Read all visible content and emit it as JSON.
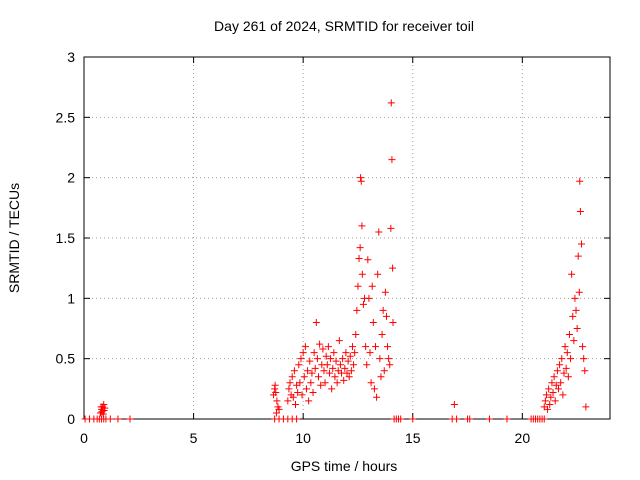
{
  "chart_data": {
    "type": "scatter",
    "title": "Day 261 of 2024, SRMTID for receiver toil",
    "xlabel": "GPS time / hours",
    "ylabel": "SRMTID / TECUs",
    "xlim": [
      0,
      24
    ],
    "ylim": [
      0,
      3
    ],
    "x_ticks": [
      0,
      5,
      10,
      15,
      20
    ],
    "x_tick_labels": [
      "0",
      "5",
      "10",
      "15",
      "20"
    ],
    "y_ticks": [
      0,
      0.5,
      1,
      1.5,
      2,
      2.5,
      3
    ],
    "y_tick_labels": [
      "0",
      "0.5",
      "1",
      "1.5",
      "2",
      "2.5",
      "3"
    ],
    "grid": true,
    "marker": "+",
    "colors": {
      "series": "#ff0000",
      "grid": "#a0a0a0",
      "axes": "#000000"
    },
    "series": [
      {
        "name": "SRMTID",
        "points": [
          [
            0.05,
            0
          ],
          [
            0.25,
            0
          ],
          [
            0.45,
            0
          ],
          [
            0.6,
            0
          ],
          [
            0.7,
            0
          ],
          [
            0.8,
            0
          ],
          [
            0.9,
            0
          ],
          [
            1.0,
            0
          ],
          [
            1.2,
            0
          ],
          [
            1.55,
            0
          ],
          [
            2.1,
            0
          ],
          [
            0.75,
            0.05
          ],
          [
            0.8,
            0.08
          ],
          [
            0.85,
            0.1
          ],
          [
            0.9,
            0.12
          ],
          [
            0.95,
            0.09
          ],
          [
            0.82,
            0.06
          ],
          [
            0.88,
            0.04
          ],
          [
            0.78,
            0.1
          ],
          [
            0.92,
            0.07
          ],
          [
            8.7,
            0
          ],
          [
            8.9,
            0
          ],
          [
            9.1,
            0
          ],
          [
            9.3,
            0
          ],
          [
            9.5,
            0
          ],
          [
            9.7,
            0
          ],
          [
            8.65,
            0.2
          ],
          [
            8.7,
            0.25
          ],
          [
            8.75,
            0.22
          ],
          [
            8.8,
            0.15
          ],
          [
            8.85,
            0.1
          ],
          [
            8.9,
            0.08
          ],
          [
            8.72,
            0.28
          ],
          [
            8.78,
            0.05
          ],
          [
            9.3,
            0.15
          ],
          [
            9.35,
            0.25
          ],
          [
            9.4,
            0.3
          ],
          [
            9.45,
            0.2
          ],
          [
            9.5,
            0.35
          ],
          [
            9.55,
            0.18
          ],
          [
            9.6,
            0.4
          ],
          [
            9.65,
            0.12
          ],
          [
            9.7,
            0.28
          ],
          [
            9.75,
            0.22
          ],
          [
            9.8,
            0.45
          ],
          [
            9.85,
            0.3
          ],
          [
            9.9,
            0.5
          ],
          [
            9.95,
            0.2
          ],
          [
            10.0,
            0.55
          ],
          [
            10.05,
            0.35
          ],
          [
            10.1,
            0.6
          ],
          [
            10.15,
            0.25
          ],
          [
            10.2,
            0.4
          ],
          [
            10.25,
            0.15
          ],
          [
            10.3,
            0.48
          ],
          [
            10.35,
            0.3
          ],
          [
            10.4,
            0.38
          ],
          [
            10.45,
            0.22
          ],
          [
            10.5,
            0.55
          ],
          [
            10.55,
            0.42
          ],
          [
            10.6,
            0.8
          ],
          [
            10.65,
            0.5
          ],
          [
            10.7,
            0.35
          ],
          [
            10.75,
            0.62
          ],
          [
            10.8,
            0.28
          ],
          [
            10.85,
            0.45
          ],
          [
            10.9,
            0.58
          ],
          [
            10.95,
            0.4
          ],
          [
            11.0,
            0.3
          ],
          [
            11.05,
            0.52
          ],
          [
            11.1,
            0.45
          ],
          [
            11.15,
            0.6
          ],
          [
            11.2,
            0.38
          ],
          [
            11.25,
            0.5
          ],
          [
            11.3,
            0.25
          ],
          [
            11.35,
            0.42
          ],
          [
            11.4,
            0.55
          ],
          [
            11.45,
            0.35
          ],
          [
            11.5,
            0.48
          ],
          [
            11.55,
            0.3
          ],
          [
            11.6,
            0.4
          ],
          [
            11.65,
            0.65
          ],
          [
            11.7,
            0.45
          ],
          [
            11.75,
            0.38
          ],
          [
            11.8,
            0.5
          ],
          [
            11.85,
            0.32
          ],
          [
            11.9,
            0.42
          ],
          [
            11.95,
            0.55
          ],
          [
            12.0,
            0.38
          ],
          [
            12.05,
            0.48
          ],
          [
            12.1,
            0.35
          ],
          [
            12.15,
            0.52
          ],
          [
            12.2,
            0.4
          ],
          [
            12.25,
            0.6
          ],
          [
            12.3,
            0.45
          ],
          [
            12.35,
            0.55
          ],
          [
            12.4,
            0.7
          ],
          [
            12.45,
            0.9
          ],
          [
            12.5,
            1.1
          ],
          [
            12.55,
            1.33
          ],
          [
            12.6,
            1.42
          ],
          [
            12.62,
            2.0
          ],
          [
            12.65,
            1.97
          ],
          [
            12.68,
            1.6
          ],
          [
            12.7,
            1.2
          ],
          [
            12.75,
            0.95
          ],
          [
            12.8,
            1.0
          ],
          [
            12.85,
            0.6
          ],
          [
            12.9,
            0.45
          ],
          [
            12.95,
            1.32
          ],
          [
            13.0,
            1.0
          ],
          [
            13.05,
            0.55
          ],
          [
            13.1,
            0.3
          ],
          [
            13.15,
            1.1
          ],
          [
            13.2,
            0.8
          ],
          [
            13.25,
            0.25
          ],
          [
            13.3,
            0.6
          ],
          [
            13.35,
            0.18
          ],
          [
            13.4,
            1.2
          ],
          [
            13.45,
            1.55
          ],
          [
            13.5,
            0.5
          ],
          [
            13.55,
            0.35
          ],
          [
            13.6,
            0.7
          ],
          [
            13.65,
            0.9
          ],
          [
            13.7,
            0.4
          ],
          [
            13.75,
            1.05
          ],
          [
            13.8,
            0.85
          ],
          [
            13.85,
            0.6
          ],
          [
            13.9,
            0.5
          ],
          [
            13.95,
            0.45
          ],
          [
            14.0,
            1.58
          ],
          [
            14.02,
            2.62
          ],
          [
            14.05,
            2.15
          ],
          [
            14.08,
            1.25
          ],
          [
            14.1,
            0.8
          ],
          [
            14.15,
            0
          ],
          [
            14.25,
            0
          ],
          [
            14.35,
            0
          ],
          [
            14.45,
            0
          ],
          [
            15.0,
            0
          ],
          [
            16.8,
            0
          ],
          [
            16.9,
            0.12
          ],
          [
            17.0,
            0
          ],
          [
            17.5,
            0
          ],
          [
            17.6,
            0
          ],
          [
            18.5,
            0
          ],
          [
            19.3,
            0
          ],
          [
            20.4,
            0
          ],
          [
            20.5,
            0
          ],
          [
            20.6,
            0
          ],
          [
            20.7,
            0
          ],
          [
            20.8,
            0
          ],
          [
            20.9,
            0
          ],
          [
            21.0,
            0
          ],
          [
            21.0,
            0.1
          ],
          [
            21.05,
            0.15
          ],
          [
            21.1,
            0.2
          ],
          [
            21.15,
            0.08
          ],
          [
            21.2,
            0.25
          ],
          [
            21.25,
            0.12
          ],
          [
            21.3,
            0.18
          ],
          [
            21.35,
            0.3
          ],
          [
            21.4,
            0.22
          ],
          [
            21.45,
            0.35
          ],
          [
            21.5,
            0.15
          ],
          [
            21.55,
            0.28
          ],
          [
            21.6,
            0.4
          ],
          [
            21.65,
            0.25
          ],
          [
            21.7,
            0.45
          ],
          [
            21.75,
            0.3
          ],
          [
            21.8,
            0.5
          ],
          [
            21.85,
            0.2
          ],
          [
            21.9,
            0.38
          ],
          [
            21.95,
            0.6
          ],
          [
            22.0,
            0.42
          ],
          [
            22.05,
            0.55
          ],
          [
            22.1,
            0.35
          ],
          [
            22.15,
            0.7
          ],
          [
            22.2,
            0.5
          ],
          [
            22.25,
            1.2
          ],
          [
            22.3,
            0.85
          ],
          [
            22.35,
            0.65
          ],
          [
            22.4,
            1.0
          ],
          [
            22.45,
            0.9
          ],
          [
            22.5,
            0.75
          ],
          [
            22.55,
            1.35
          ],
          [
            22.6,
            1.05
          ],
          [
            22.62,
            1.97
          ],
          [
            22.65,
            1.72
          ],
          [
            22.7,
            1.45
          ],
          [
            22.75,
            0.6
          ],
          [
            22.8,
            0.5
          ],
          [
            22.85,
            0.4
          ],
          [
            22.9,
            0.1
          ]
        ]
      }
    ]
  }
}
